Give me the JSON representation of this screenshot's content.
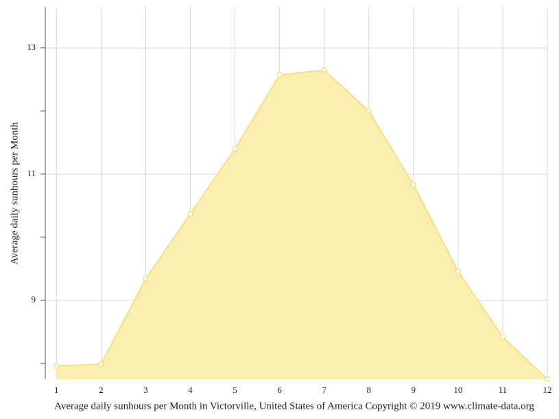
{
  "chart_data": {
    "type": "area",
    "x_label": "Average daily sunhours per Month in Victorville, United States of America Copyright © 2019 www.climate-data.org",
    "y_label": "Average daily sunhours per Month",
    "x": [
      1,
      2,
      3,
      4,
      5,
      6,
      7,
      8,
      9,
      10,
      11,
      12
    ],
    "values": [
      7.96,
      7.99,
      9.34,
      10.37,
      11.4,
      12.57,
      12.65,
      12.0,
      10.83,
      9.46,
      8.42,
      7.75
    ],
    "color": "#f7df7f",
    "fill": "#faeeb0",
    "xlim": [
      0.75,
      12
    ],
    "xticks": [
      1,
      2,
      3,
      4,
      5,
      6,
      7,
      8,
      9,
      10,
      11,
      12
    ],
    "ylim": [
      7.75,
      13.65
    ],
    "yticks": [
      9,
      11,
      13
    ],
    "minor_yticks": [
      8,
      10,
      12
    ],
    "grid": true
  }
}
